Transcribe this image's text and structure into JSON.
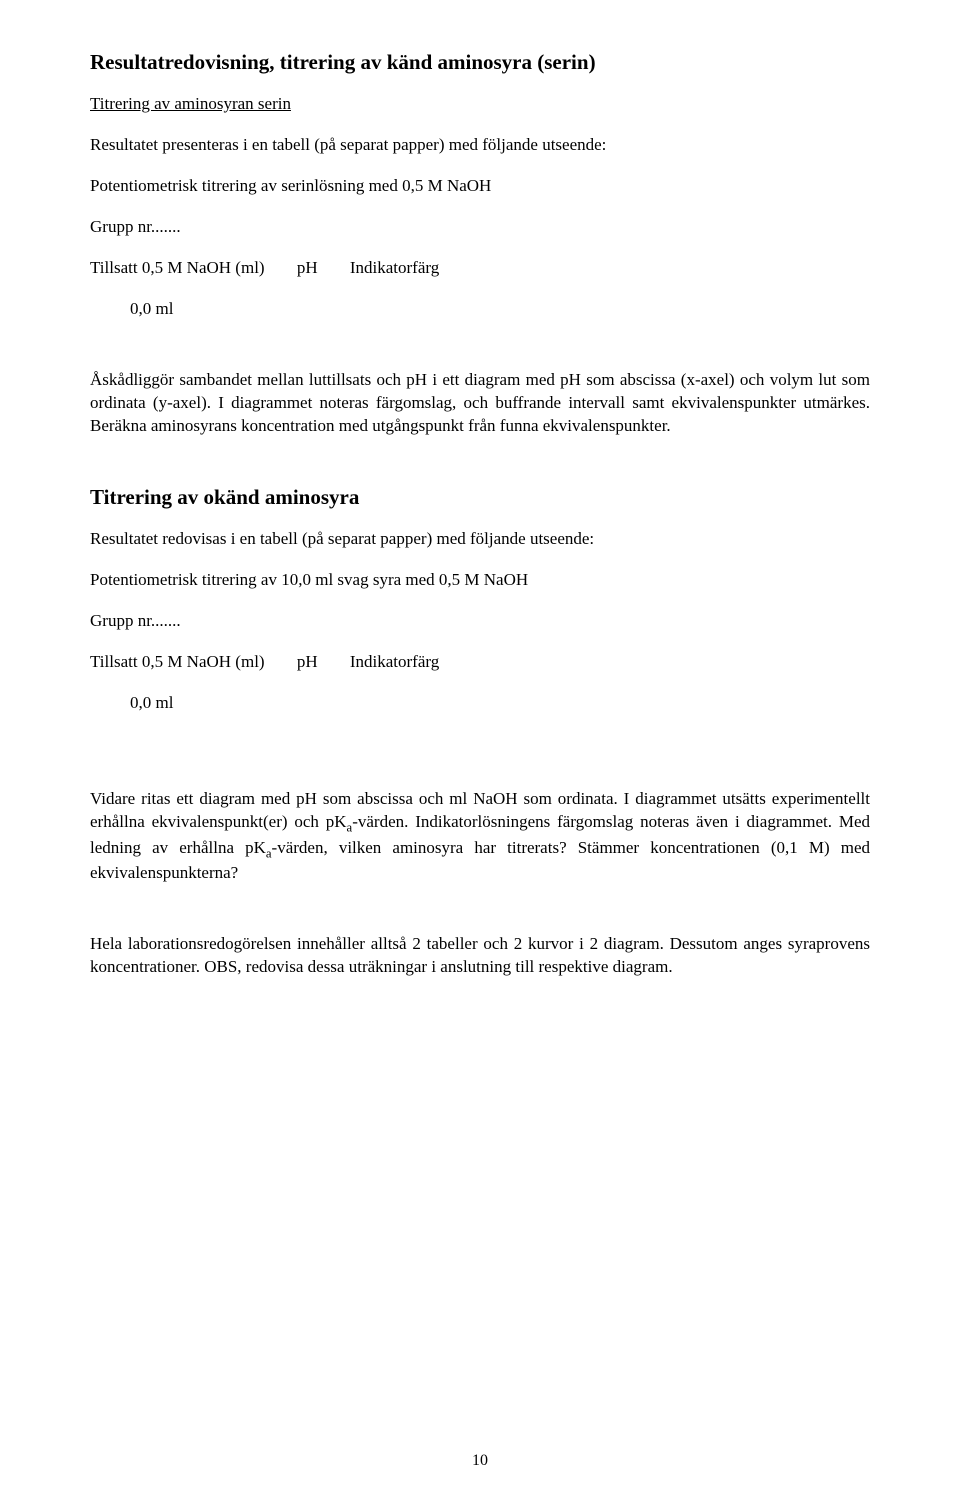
{
  "title": "Resultatredovisning, titrering av känd aminosyra (serin)",
  "sub1": "Titrering av aminosyran serin",
  "p1": "Resultatet presenteras i en tabell (på separat papper) med följande utseende:",
  "p2": "Potentiometrisk titrering av serinlösning med 0,5 M NaOH",
  "grupp": "Grupp nr.......",
  "tblhead_a": "Tillsatt 0,5 M NaOH  (ml)",
  "tblhead_b": "pH",
  "tblhead_c": "Indikatorfärg",
  "row0": "0,0 ml",
  "p3": "Åskådliggör sambandet mellan luttillsats och pH i ett diagram med pH som abscissa (x-axel) och volym lut som ordinata (y-axel). I diagrammet noteras färgomslag, och buffrande intervall samt ekvivalenspunkter utmärkes. Beräkna aminosyrans koncentration med utgångspunkt från funna ekvivalenspunkter.",
  "h2": "Titrering av okänd aminosyra",
  "p4": "Resultatet redovisas i en tabell (på separat papper) med följande utseende:",
  "p5": "Potentiometrisk titrering av 10,0 ml svag syra med 0,5 M NaOH",
  "p6a": "Vidare ritas ett diagram med pH som abscissa och ml NaOH som ordinata. I diagrammet utsätts experimentellt erhållna ekvivalenspunkt(er) och pK",
  "p6b": "-värden. Indikatorlösningens färgomslag noteras även i diagrammet. Med ledning av erhållna pK",
  "p6c": "-värden, vilken aminosyra har titrerats? Stämmer koncentrationen (0,1 M) med ekvivalenspunkterna?",
  "sub_a": "a",
  "p7": "Hela laborationsredogörelsen innehåller alltså 2 tabeller och 2 kurvor i 2 diagram. Dessutom anges syraprovens koncentrationer. OBS, redovisa dessa uträkningar i anslutning till respektive diagram.",
  "pagenum": "10"
}
